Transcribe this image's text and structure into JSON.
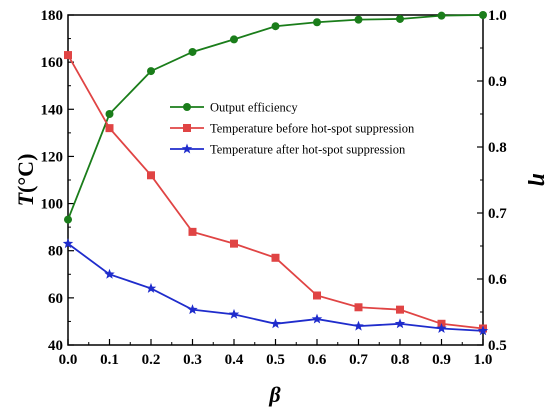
{
  "chart_data": {
    "type": "line",
    "x": [
      0.0,
      0.1,
      0.2,
      0.3,
      0.4,
      0.5,
      0.6,
      0.7,
      0.8,
      0.9,
      1.0
    ],
    "xlabel": "β",
    "ylabel_left": "T(°C)",
    "ylabel_left_italic": "T",
    "ylabel_left_unit": "(°C)",
    "ylabel_right": "η",
    "xlim": [
      0.0,
      1.0
    ],
    "ylim_left": [
      40,
      180
    ],
    "ylim_right": [
      0.5,
      1.0
    ],
    "x_ticks": [
      "0.0",
      "0.1",
      "0.2",
      "0.3",
      "0.4",
      "0.5",
      "0.6",
      "0.7",
      "0.8",
      "0.9",
      "1.0"
    ],
    "y_left_ticks": [
      "40",
      "60",
      "80",
      "100",
      "120",
      "140",
      "160",
      "180"
    ],
    "y_right_ticks": [
      "0.5",
      "0.6",
      "0.7",
      "0.8",
      "0.9",
      "1.0"
    ],
    "legend_position": "upper-center",
    "grid": false,
    "series": [
      {
        "name": "Output efficiency",
        "axis": "right",
        "color": "#1a7d1a",
        "marker": "circle",
        "values": [
          0.69,
          0.85,
          0.915,
          0.944,
          0.963,
          0.983,
          0.989,
          0.993,
          0.994,
          0.999,
          1.0
        ]
      },
      {
        "name": "Temperature before hot-spot suppression",
        "axis": "left",
        "color": "#e04444",
        "marker": "square",
        "values": [
          163,
          132,
          112,
          88,
          83,
          77,
          61,
          56,
          55,
          49,
          47
        ]
      },
      {
        "name": "Temperature after hot-spot suppression",
        "axis": "left",
        "color": "#1f2ccc",
        "marker": "star",
        "values": [
          83,
          70,
          64,
          55,
          53,
          49,
          51,
          48,
          49,
          47,
          46
        ]
      }
    ]
  }
}
